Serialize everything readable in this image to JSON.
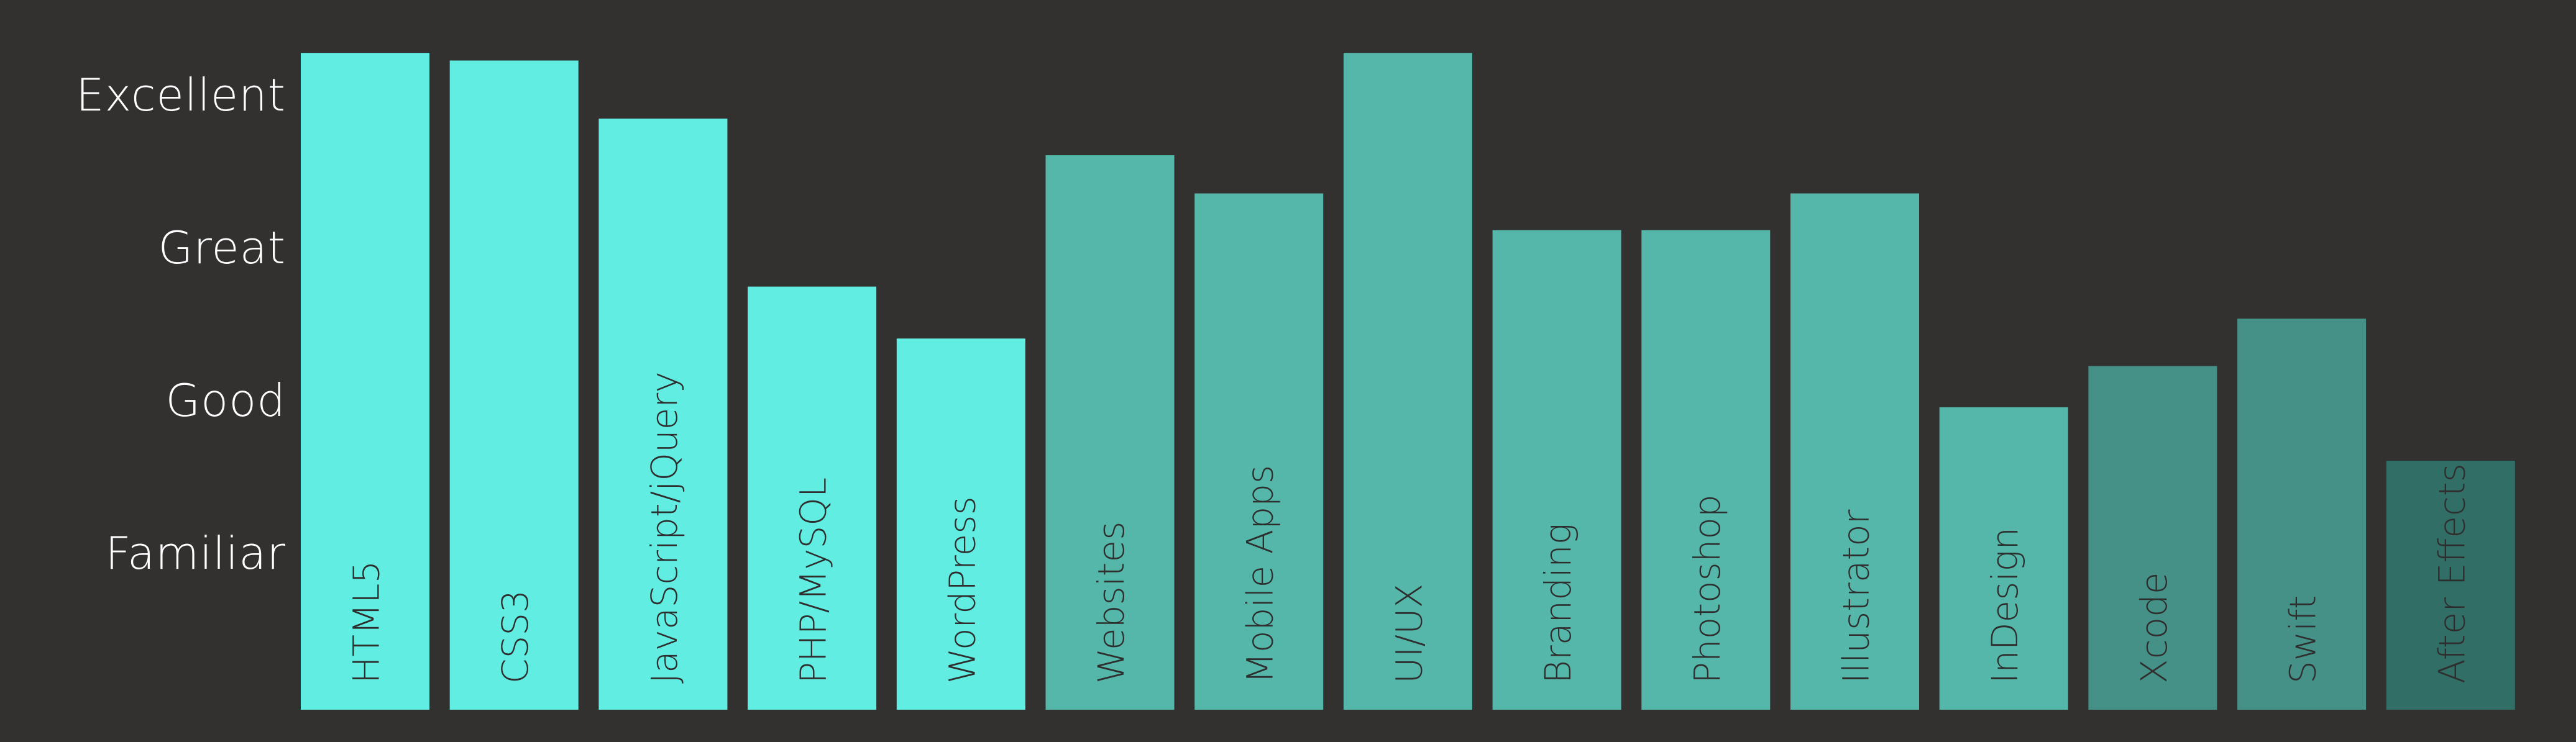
{
  "colors": {
    "background": "#333030",
    "label_text": "#ffffff",
    "bar_label_text": "#2e2e2e"
  },
  "chart_data": {
    "type": "bar",
    "orientation": "vertical",
    "ylim": [
      0,
      4.25
    ],
    "y_ticks": [
      {
        "value": 1,
        "label": "Familiar"
      },
      {
        "value": 2,
        "label": "Good"
      },
      {
        "value": 3,
        "label": "Great"
      },
      {
        "value": 4,
        "label": "Excellent"
      }
    ],
    "grid": false,
    "legend": "none",
    "categories": [
      "HTML5",
      "CSS3",
      "JavaScript/jQuery",
      "PHP/MySQL",
      "WordPress",
      "Websites",
      "Mobile Apps",
      "UI/UX",
      "Branding",
      "Photoshop",
      "Illustrator",
      "InDesign",
      "Xcode",
      "Swift",
      "After Effects"
    ],
    "values": [
      4.3,
      4.25,
      3.87,
      2.77,
      2.43,
      3.63,
      3.38,
      4.3,
      3.14,
      3.14,
      3.38,
      1.98,
      2.25,
      2.56,
      1.63
    ],
    "bar_colors": [
      "#61ede2",
      "#61ede2",
      "#61ede2",
      "#61ede2",
      "#61ede2",
      "#55b7a9",
      "#55b7a9",
      "#55b7a9",
      "#55b7a9",
      "#55b7a9",
      "#55b7a9",
      "#55b7a9",
      "#459187",
      "#459187",
      "#306e66"
    ]
  }
}
